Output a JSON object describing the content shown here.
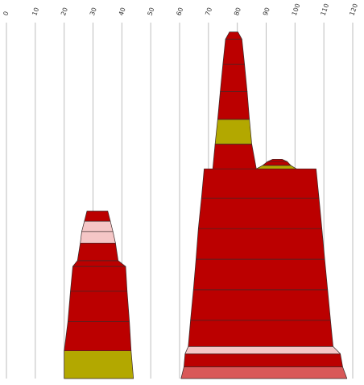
{
  "chart_data": {
    "type": "area",
    "title": "",
    "xlabel": "",
    "ylabel": "",
    "xlim": [
      0,
      120
    ],
    "ylim": [
      0,
      120
    ],
    "x_ticks": [
      "0",
      "10",
      "20",
      "30",
      "40",
      "50",
      "60",
      "70",
      "80",
      "90",
      "100",
      "110",
      "120"
    ],
    "grid": true,
    "tick_label_rotation_deg": -70,
    "colors": {
      "dark_red": "#bb0000",
      "olive": "#b3a800",
      "light_pink": "#f5c6c6",
      "salmon": "#d95858",
      "outline": "#3a2a2a",
      "grid": "#bdbdbd"
    },
    "shapes": [
      {
        "name": "left-stack-band-1",
        "color": "olive",
        "y0": 0,
        "y1": 9.5,
        "xl0": 20,
        "xr0": 44,
        "xl1": 20,
        "xr1": 43.2
      },
      {
        "name": "left-stack-band-2",
        "color": "dark_red",
        "y0": 9.5,
        "y1": 19.5,
        "xl0": 20,
        "xr0": 43.2,
        "xl1": 21.3,
        "xr1": 42.6
      },
      {
        "name": "left-stack-band-3",
        "color": "dark_red",
        "y0": 19.5,
        "y1": 30,
        "xl0": 21.3,
        "xr0": 42.6,
        "xl1": 22.2,
        "xr1": 41.8
      },
      {
        "name": "left-stack-band-4",
        "color": "dark_red",
        "y0": 30,
        "y1": 38.5,
        "xl0": 22.2,
        "xr0": 41.8,
        "xl1": 23.0,
        "xr1": 41.3
      },
      {
        "name": "left-stack-band-5",
        "color": "dark_red",
        "y0": 38.5,
        "y1": 40.5,
        "xl0": 23.0,
        "xr0": 41.3,
        "xl1": 24.6,
        "xr1": 38.7
      },
      {
        "name": "left-stack-band-6",
        "color": "dark_red",
        "y0": 40.5,
        "y1": 46.5,
        "xl0": 24.6,
        "xr0": 38.7,
        "xl1": 25.6,
        "xr1": 37.8
      },
      {
        "name": "left-stack-band-7",
        "color": "light_pink",
        "y0": 46.5,
        "y1": 50.5,
        "xl0": 25.6,
        "xr0": 37.8,
        "xl1": 26.1,
        "xr1": 36.9
      },
      {
        "name": "left-stack-band-8",
        "color": "light_pink",
        "y0": 50.5,
        "y1": 54,
        "xl0": 26.1,
        "xr0": 36.9,
        "xl1": 27.0,
        "xr1": 36.0
      },
      {
        "name": "left-stack-band-9",
        "color": "dark_red",
        "y0": 54,
        "y1": 57.5,
        "xl0": 27.0,
        "xr0": 36.0,
        "xl1": 27.9,
        "xr1": 35.1
      },
      {
        "name": "right-stack-band-1",
        "color": "salmon",
        "y0": 0,
        "y1": 4,
        "xl0": 60.5,
        "xr0": 118,
        "xl1": 61.5,
        "xr1": 116.5
      },
      {
        "name": "right-stack-band-2",
        "color": "dark_red",
        "y0": 4,
        "y1": 8.5,
        "xl0": 61.5,
        "xr0": 116.5,
        "xl1": 61.9,
        "xr1": 115.7
      },
      {
        "name": "right-stack-band-3",
        "color": "light_pink",
        "y0": 8.5,
        "y1": 11,
        "xl0": 61.9,
        "xr0": 115.7,
        "xl1": 63.0,
        "xr1": 113.2
      },
      {
        "name": "right-stack-band-4",
        "color": "dark_red",
        "y0": 11,
        "y1": 20,
        "xl0": 63.0,
        "xr0": 113.2,
        "xl1": 63.8,
        "xr1": 112.3
      },
      {
        "name": "right-stack-band-5",
        "color": "dark_red",
        "y0": 20,
        "y1": 30.5,
        "xl0": 63.8,
        "xr0": 112.3,
        "xl1": 64.8,
        "xr1": 111.3
      },
      {
        "name": "right-stack-band-6",
        "color": "dark_red",
        "y0": 30.5,
        "y1": 41,
        "xl0": 64.8,
        "xr0": 111.3,
        "xl1": 65.7,
        "xr1": 110.3
      },
      {
        "name": "right-stack-band-7",
        "color": "dark_red",
        "y0": 41,
        "y1": 51.5,
        "xl0": 65.7,
        "xr0": 110.3,
        "xl1": 66.5,
        "xr1": 109.3
      },
      {
        "name": "right-stack-band-8",
        "color": "dark_red",
        "y0": 51.5,
        "y1": 62,
        "xl0": 66.5,
        "xr0": 109.3,
        "xl1": 67.6,
        "xr1": 108.3
      },
      {
        "name": "right-stack-band-9",
        "color": "dark_red",
        "y0": 62,
        "y1": 72,
        "xl0": 67.6,
        "xr0": 108.3,
        "xl1": 68.5,
        "xr1": 107.3
      },
      {
        "name": "right-stack-band-10",
        "color": "dark_red",
        "y0": 72,
        "y1": 80.5,
        "xl0": 71.5,
        "xr0": 86.6,
        "xl1": 72.3,
        "xr1": 85.0
      },
      {
        "name": "right-stack-band-11",
        "color": "olive",
        "y0": 80.5,
        "y1": 89,
        "xl0": 72.3,
        "xr0": 85.0,
        "xl1": 73.2,
        "xr1": 84.2
      },
      {
        "name": "right-stack-band-12",
        "color": "dark_red",
        "y0": 89,
        "y1": 98.5,
        "xl0": 73.2,
        "xr0": 84.2,
        "xl1": 74.1,
        "xr1": 83.4
      },
      {
        "name": "right-stack-band-13",
        "color": "dark_red",
        "y0": 98.5,
        "y1": 108,
        "xl0": 74.1,
        "xr0": 83.4,
        "xl1": 75.0,
        "xr1": 82.5
      },
      {
        "name": "right-stack-band-14",
        "color": "dark_red",
        "y0": 108,
        "y1": 116.5,
        "xl0": 75.0,
        "xr0": 82.5,
        "xl1": 75.9,
        "xr1": 81.6
      },
      {
        "name": "right-stack-band-15",
        "color": "dark_red",
        "y0": 116.5,
        "y1": 119,
        "xl0": 75.9,
        "xr0": 81.6,
        "xl1": 77.3,
        "xr1": 80.2
      },
      {
        "name": "side-mound-band-1",
        "color": "olive",
        "y0": 72,
        "y1": 73.2,
        "xl0": 86.6,
        "xr0": 100.5,
        "xl1": 88.8,
        "xr1": 98.5
      },
      {
        "name": "side-mound-band-2",
        "color": "dark_red",
        "y0": 73.2,
        "y1": 74.5,
        "xl0": 88.8,
        "xr0": 98.5,
        "xl1": 90.5,
        "xr1": 97.3
      },
      {
        "name": "side-mound-band-3",
        "color": "dark_red",
        "y0": 74.5,
        "y1": 75.3,
        "xl0": 90.5,
        "xr0": 97.3,
        "xl1": 92.3,
        "xr1": 95.5
      }
    ]
  }
}
